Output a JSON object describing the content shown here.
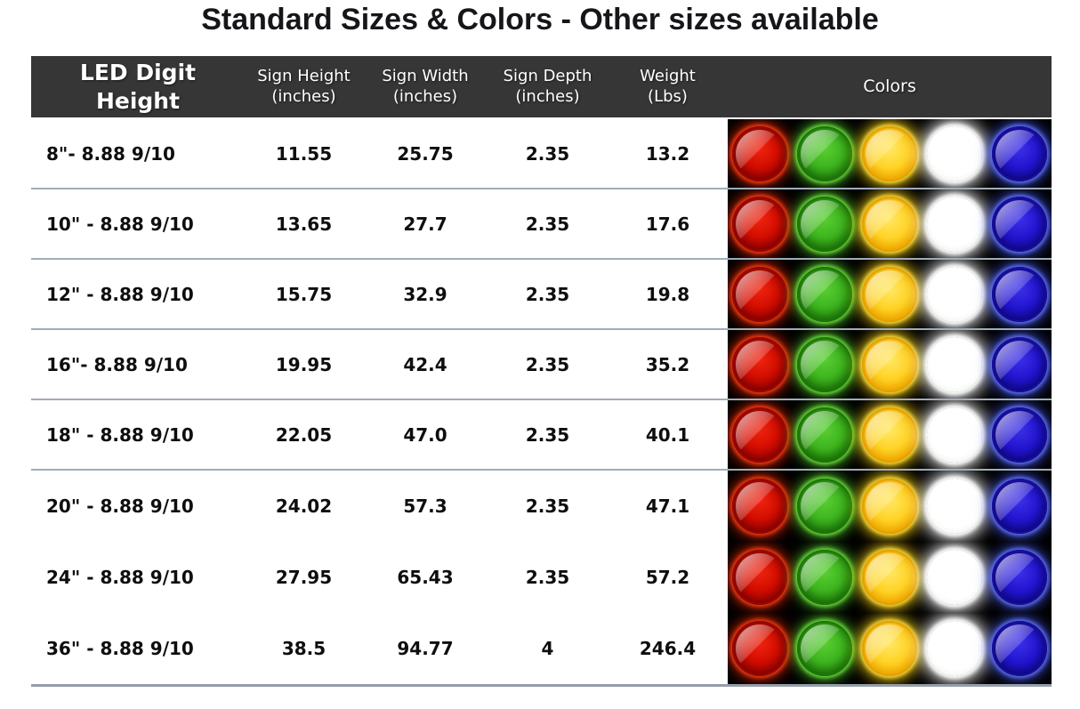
{
  "title": "Standard Sizes & Colors - Other sizes available",
  "table": {
    "headers": [
      {
        "label": "LED Digit Height",
        "sub": ""
      },
      {
        "label": "Sign Height",
        "sub": "(inches)"
      },
      {
        "label": "Sign Width",
        "sub": "(inches)"
      },
      {
        "label": "Sign Depth",
        "sub": "(inches)"
      },
      {
        "label": "Weight",
        "sub": "(Lbs)"
      },
      {
        "label": "Colors",
        "sub": ""
      }
    ],
    "rows": [
      {
        "digit_height": "8\"- 8.88 9/10",
        "sign_height": "11.55",
        "sign_width": "25.75",
        "sign_depth": "2.35",
        "weight": "13.2"
      },
      {
        "digit_height": "10\" - 8.88 9/10",
        "sign_height": "13.65",
        "sign_width": "27.7",
        "sign_depth": "2.35",
        "weight": "17.6"
      },
      {
        "digit_height": "12\" - 8.88 9/10",
        "sign_height": "15.75",
        "sign_width": "32.9",
        "sign_depth": "2.35",
        "weight": "19.8"
      },
      {
        "digit_height": "16\"- 8.88 9/10",
        "sign_height": "19.95",
        "sign_width": "42.4",
        "sign_depth": "2.35",
        "weight": "35.2"
      },
      {
        "digit_height": "18\" - 8.88 9/10",
        "sign_height": "22.05",
        "sign_width": "47.0",
        "sign_depth": "2.35",
        "weight": "40.1"
      },
      {
        "digit_height": "20\" - 8.88 9/10",
        "sign_height": "24.02",
        "sign_width": "57.3",
        "sign_depth": "2.35",
        "weight": "47.1"
      },
      {
        "digit_height": "24\" - 8.88 9/10",
        "sign_height": "27.95",
        "sign_width": "65.43",
        "sign_depth": "2.35",
        "weight": "57.2"
      },
      {
        "digit_height": "36\" - 8.88 9/10",
        "sign_height": "38.5",
        "sign_width": "94.77",
        "sign_depth": "4",
        "weight": "246.4"
      }
    ]
  },
  "led_colors": [
    {
      "name": "red",
      "hex": "#d40e00"
    },
    {
      "name": "green",
      "hex": "#3db31e"
    },
    {
      "name": "yellow",
      "hex": "#ffd427"
    },
    {
      "name": "white",
      "hex": "#ffffff"
    },
    {
      "name": "blue",
      "hex": "#2315cf"
    }
  ],
  "theme": {
    "header_bg": "#363636",
    "header_text": "#ffffff",
    "row_separator": "#9fadb9",
    "colors_cell_bg": "#000000",
    "body_text": "#0e0e0e"
  }
}
